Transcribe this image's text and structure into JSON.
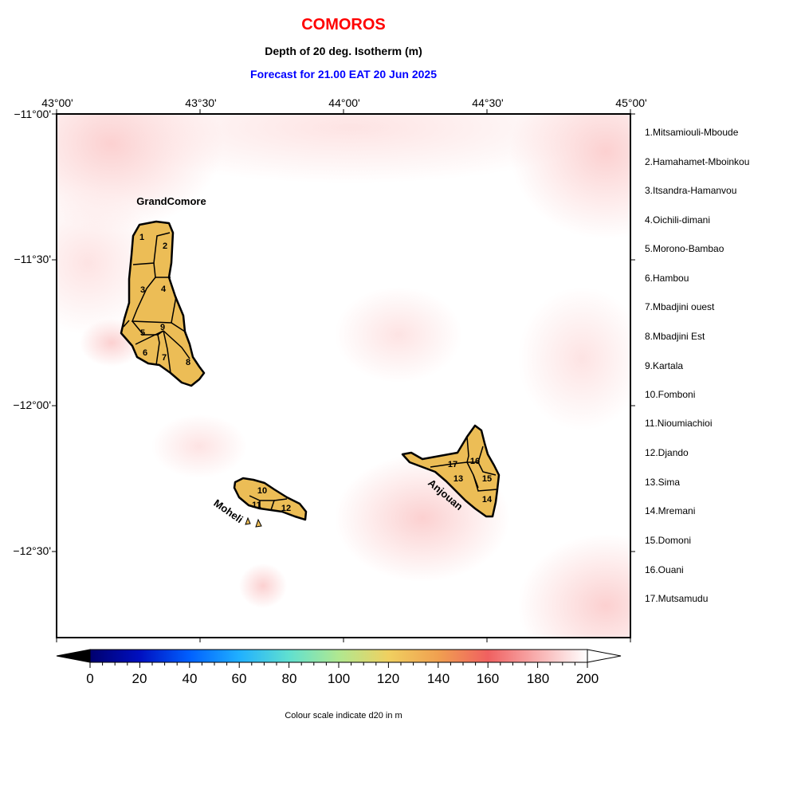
{
  "header": {
    "title": "COMOROS",
    "subtitle": "Depth of 20 deg. Isotherm (m)",
    "forecast": "Forecast for  21.00 EAT 20 Jun 2025"
  },
  "axes": {
    "lon_labels": [
      "43°00'",
      "43°30'",
      "44°00'",
      "44°30'",
      "45°00'"
    ],
    "lat_labels": [
      "−11°00'",
      "−11°30'",
      "−12°00'",
      "−12°30'"
    ]
  },
  "islands": {
    "grand_comore": "GrandComore",
    "moheli": "Moheli",
    "anjouan": "Anjouan"
  },
  "regions": [
    {
      "num": "1",
      "name": "1.Mitsamiouli-Mboude"
    },
    {
      "num": "2",
      "name": "2.Hamahamet-Mboinkou"
    },
    {
      "num": "3",
      "name": "3.Itsandra-Hamanvou"
    },
    {
      "num": "4",
      "name": "4.Oichili-dimani"
    },
    {
      "num": "5",
      "name": "5.Morono-Bambao"
    },
    {
      "num": "6",
      "name": "6.Hambou"
    },
    {
      "num": "7",
      "name": "7.Mbadjini ouest"
    },
    {
      "num": "8",
      "name": "8.Mbadjini Est"
    },
    {
      "num": "9",
      "name": "9.Kartala"
    },
    {
      "num": "10",
      "name": "10.Fomboni"
    },
    {
      "num": "11",
      "name": "11.Nioumiachioi"
    },
    {
      "num": "12",
      "name": "12.Djando"
    },
    {
      "num": "13",
      "name": "13.Sima"
    },
    {
      "num": "14",
      "name": "14.Mremani"
    },
    {
      "num": "15",
      "name": "15.Domoni"
    },
    {
      "num": "16",
      "name": "16.Ouani"
    },
    {
      "num": "17",
      "name": "17.Mutsamudu"
    }
  ],
  "colorbar": {
    "ticks": [
      "0",
      "20",
      "40",
      "60",
      "80",
      "100",
      "120",
      "140",
      "160",
      "180",
      "200"
    ],
    "caption": "Colour scale indicate d20 in m",
    "colors": [
      "#00006e",
      "#0010c0",
      "#0060ff",
      "#20b0ff",
      "#60e0d0",
      "#b0e890",
      "#f0d060",
      "#f0a050",
      "#f06060",
      "#f8b0b0",
      "#ffffff"
    ]
  },
  "colors": {
    "land": "#ecbd56",
    "ocean_high": "#ffffff",
    "ocean_tint": "#fde0e0"
  }
}
